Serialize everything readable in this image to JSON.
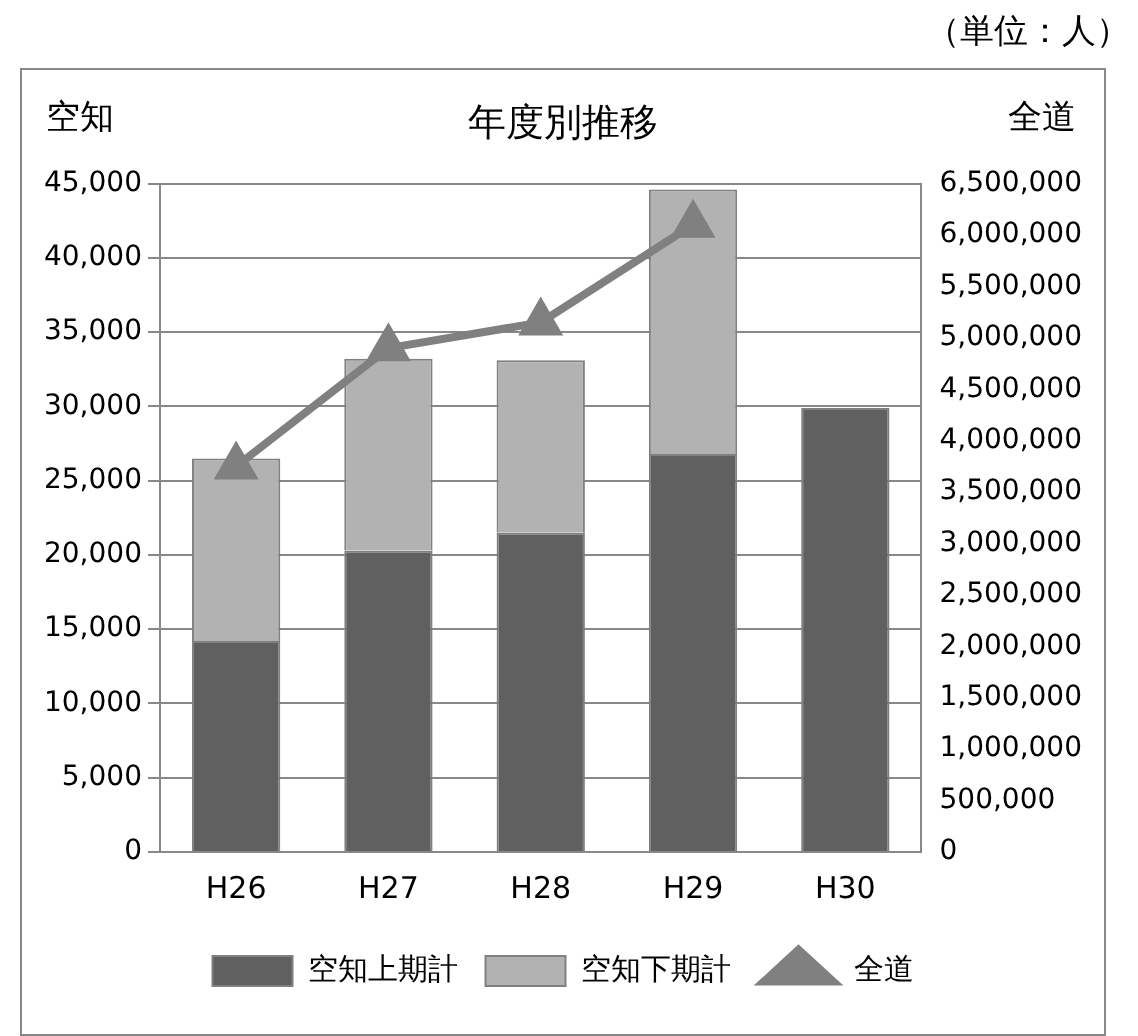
{
  "chart_data": {
    "type": "bar",
    "title": "年度別推移",
    "ylabel": "空知",
    "y2label": "全道",
    "annotations": [
      "（単位：人）"
    ],
    "categories": [
      "H26",
      "H27",
      "H28",
      "H29",
      "H30"
    ],
    "series": [
      {
        "name": "空知上期計",
        "color": "#606060",
        "values": [
          14200,
          20300,
          21500,
          26800,
          29900
        ]
      },
      {
        "name": "空知下期計",
        "color": "#b2b2b2",
        "values": [
          12300,
          12900,
          11600,
          17800,
          null
        ]
      },
      {
        "name": "全道",
        "type": "line",
        "axis": "y2",
        "color": "#808080",
        "values": [
          3750000,
          4900000,
          5150000,
          6100000,
          null
        ]
      }
    ],
    "stacked": true,
    "ylim": [
      0,
      45000
    ],
    "yticks": [
      0,
      {
        "value": 5000,
        "label": "5,000"
      },
      {
        "value": 10000,
        "label": "10,000"
      },
      {
        "value": 15000,
        "label": "15,000"
      },
      {
        "value": 20000,
        "label": "20,000"
      },
      {
        "value": 25000,
        "label": "25,000"
      },
      {
        "value": 30000,
        "label": "30,000"
      },
      {
        "value": 35000,
        "label": "35,000"
      },
      {
        "value": 40000,
        "label": "40,000"
      },
      {
        "value": 45000,
        "label": "45,000"
      }
    ],
    "y2lim": [
      0,
      6500000
    ],
    "y2ticks": [
      0,
      {
        "value": 500000,
        "label": "500,000"
      },
      {
        "value": 1000000,
        "label": "1,000,000"
      },
      {
        "value": 1500000,
        "label": "1,500,000"
      },
      {
        "value": 2000000,
        "label": "2,000,000"
      },
      {
        "value": 2500000,
        "label": "2,500,000"
      },
      {
        "value": 3000000,
        "label": "3,000,000"
      },
      {
        "value": 3500000,
        "label": "3,500,000"
      },
      {
        "value": 4000000,
        "label": "4,000,000"
      },
      {
        "value": 4500000,
        "label": "4,500,000"
      },
      {
        "value": 5000000,
        "label": "5,000,000"
      },
      {
        "value": 5500000,
        "label": "5,500,000"
      },
      {
        "value": 6000000,
        "label": "6,000,000"
      },
      {
        "value": 6500000,
        "label": "6,500,000"
      }
    ],
    "grid": "y",
    "legend": "bottom",
    "marker": "triangle",
    "line_style": "solid"
  }
}
